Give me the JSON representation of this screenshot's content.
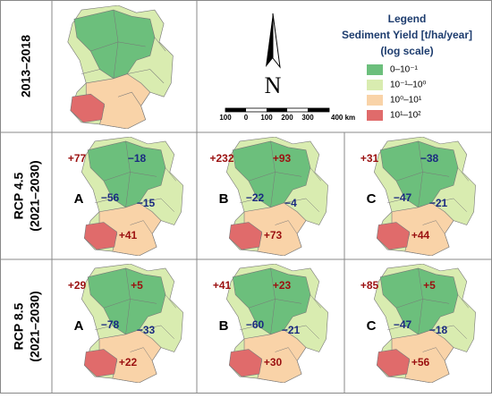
{
  "rows": [
    {
      "label": "2013–2018"
    },
    {
      "label": "RCP 4.5",
      "sublabel": "(2021–2030)",
      "panels": [
        {
          "letter": "A",
          "changes": [
            "+77",
            "−18",
            "−56",
            "−15",
            "+41"
          ]
        },
        {
          "letter": "B",
          "changes": [
            "+232",
            "+93",
            "−22",
            "−4",
            "+73"
          ]
        },
        {
          "letter": "C",
          "changes": [
            "+31",
            "−38",
            "−47",
            "−21",
            "+44"
          ]
        }
      ]
    },
    {
      "label": "RCP 8.5",
      "sublabel": "(2021–2030)",
      "panels": [
        {
          "letter": "A",
          "changes": [
            "+29",
            "+5",
            "−78",
            "−33",
            "+22"
          ]
        },
        {
          "letter": "B",
          "changes": [
            "+41",
            "+23",
            "−60",
            "−21",
            "+30"
          ]
        },
        {
          "letter": "C",
          "changes": [
            "+85",
            "+5",
            "−47",
            "−18",
            "+56"
          ]
        }
      ]
    }
  ],
  "north": "N",
  "scale": [
    "100",
    "0",
    "100",
    "200",
    "300",
    "400 km"
  ],
  "legend": {
    "title": "Legend",
    "subtitle": "Sediment Yield [t/ha/year]",
    "note": "(log scale)",
    "items": [
      {
        "label": "0–10⁻¹",
        "color": "#6cbf7c"
      },
      {
        "label": "10⁻¹–10⁰",
        "color": "#d9ecb0"
      },
      {
        "label": "10⁰–10¹",
        "color": "#f9d3a8"
      },
      {
        "label": "10¹–10²",
        "color": "#e06b6b"
      }
    ]
  }
}
